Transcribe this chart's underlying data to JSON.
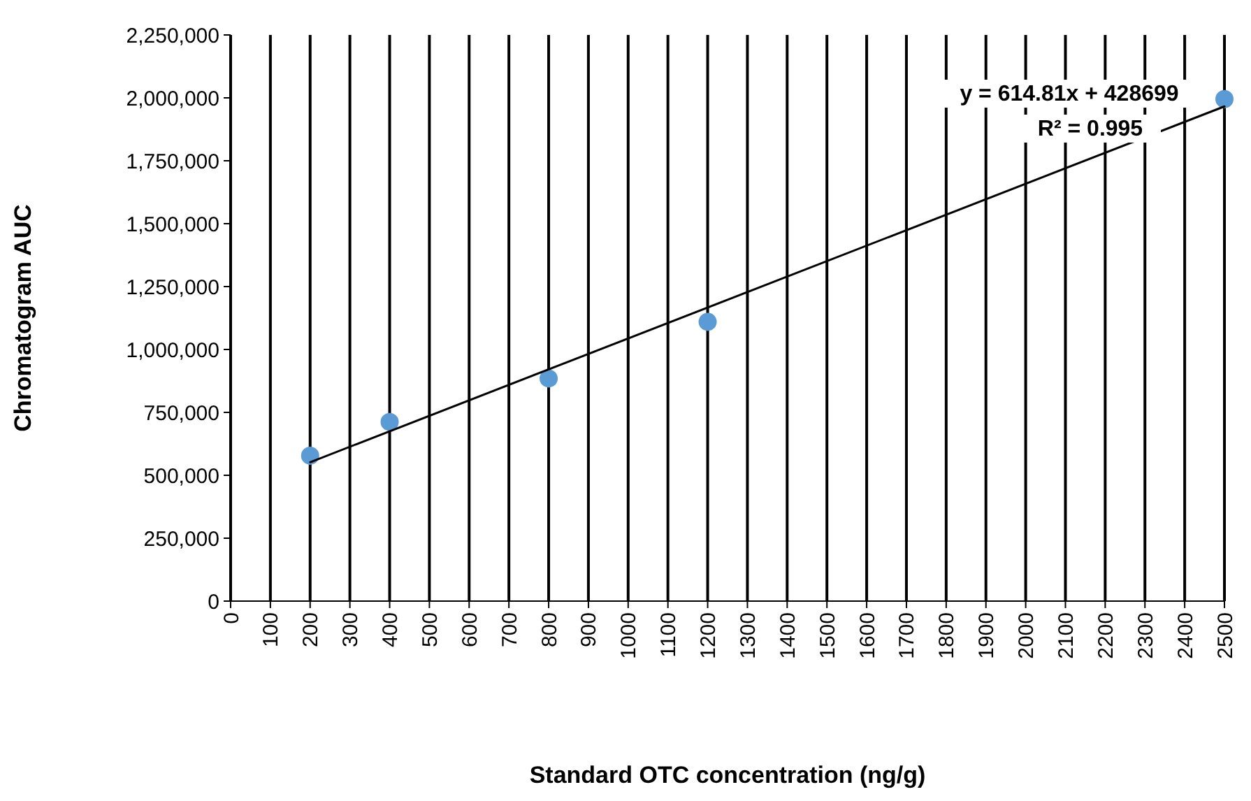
{
  "chart_data": {
    "type": "scatter",
    "xlabel": "Standard OTC concentration (ng/g)",
    "ylabel": "Chromatogram AUC",
    "series": [
      {
        "color": "#5b9bd5",
        "marker": "circle",
        "x": [
          200,
          400,
          800,
          1200,
          2500
        ],
        "values": [
          578000,
          712000,
          885000,
          1110000,
          1995000
        ]
      },
      {
        "type": "line",
        "color": "#000000",
        "x": [
          200,
          2500
        ],
        "values": [
          552000,
          1966000
        ]
      }
    ],
    "xlim": [
      0,
      2500
    ],
    "xticks": [
      0,
      100,
      200,
      300,
      400,
      500,
      600,
      700,
      800,
      900,
      1000,
      1100,
      1200,
      1300,
      1400,
      1500,
      1600,
      1700,
      1800,
      1900,
      2000,
      2100,
      2200,
      2300,
      2400,
      2500
    ],
    "ylim": [
      0,
      2250000
    ],
    "yticks": [
      0,
      {
        "value": 250000,
        "label": "250,000"
      },
      {
        "value": 500000,
        "label": "500,000"
      },
      {
        "value": 750000,
        "label": "750,000"
      },
      {
        "value": 1000000,
        "label": "1,000,000"
      },
      {
        "value": 1250000,
        "label": "1,250,000"
      },
      {
        "value": 1500000,
        "label": "1,500,000"
      },
      {
        "value": 1750000,
        "label": "1,750,000"
      },
      {
        "value": 2000000,
        "label": "2,000,000"
      },
      {
        "value": 2250000,
        "label": "2,250,000"
      }
    ],
    "grid": "x",
    "annotations": [
      "y = 614.81x + 428699",
      "R² = 0.995"
    ]
  }
}
